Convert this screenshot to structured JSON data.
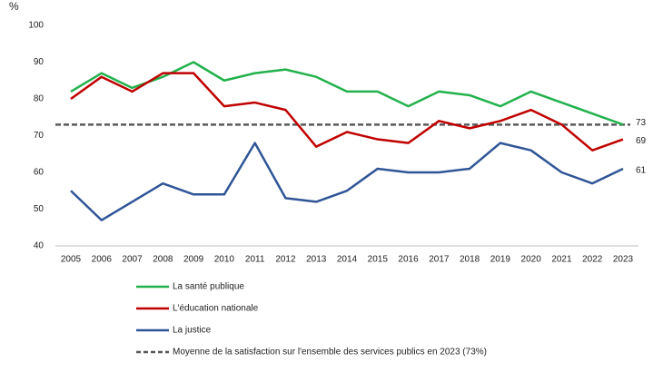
{
  "chart_data": {
    "type": "line",
    "y_axis_label": "%",
    "x": [
      "2005",
      "2006",
      "2007",
      "2008",
      "2009",
      "2010",
      "2011",
      "2012",
      "2013",
      "2014",
      "2015",
      "2016",
      "2017",
      "2018",
      "2019",
      "2020",
      "2021",
      "2022",
      "2023"
    ],
    "series": [
      {
        "name": "La santé publique",
        "color": "#22b14c",
        "values": [
          82,
          87,
          83,
          86,
          90,
          85,
          87,
          88,
          86,
          82,
          82,
          78,
          82,
          81,
          78,
          82,
          79,
          76,
          73
        ]
      },
      {
        "name": "L'éducation nationale",
        "color": "#c00000",
        "values": [
          80,
          86,
          82,
          87,
          87,
          78,
          79,
          77,
          67,
          71,
          69,
          68,
          74,
          72,
          74,
          77,
          73,
          66,
          69
        ]
      },
      {
        "name": "La justice",
        "color": "#2f5597",
        "values": [
          55,
          47,
          52,
          57,
          54,
          54,
          68,
          53,
          52,
          55,
          61,
          60,
          60,
          61,
          68,
          66,
          60,
          57,
          61
        ]
      }
    ],
    "reference_line": {
      "name": "Moyenne de la satisfaction sur l'ensemble des services publics en 2023 (73%)",
      "value": 73,
      "color": "#595959"
    },
    "ylim": [
      40,
      100
    ],
    "yticks": [
      40,
      50,
      60,
      70,
      80,
      90,
      100
    ],
    "grid": false,
    "legend": "bottom"
  }
}
